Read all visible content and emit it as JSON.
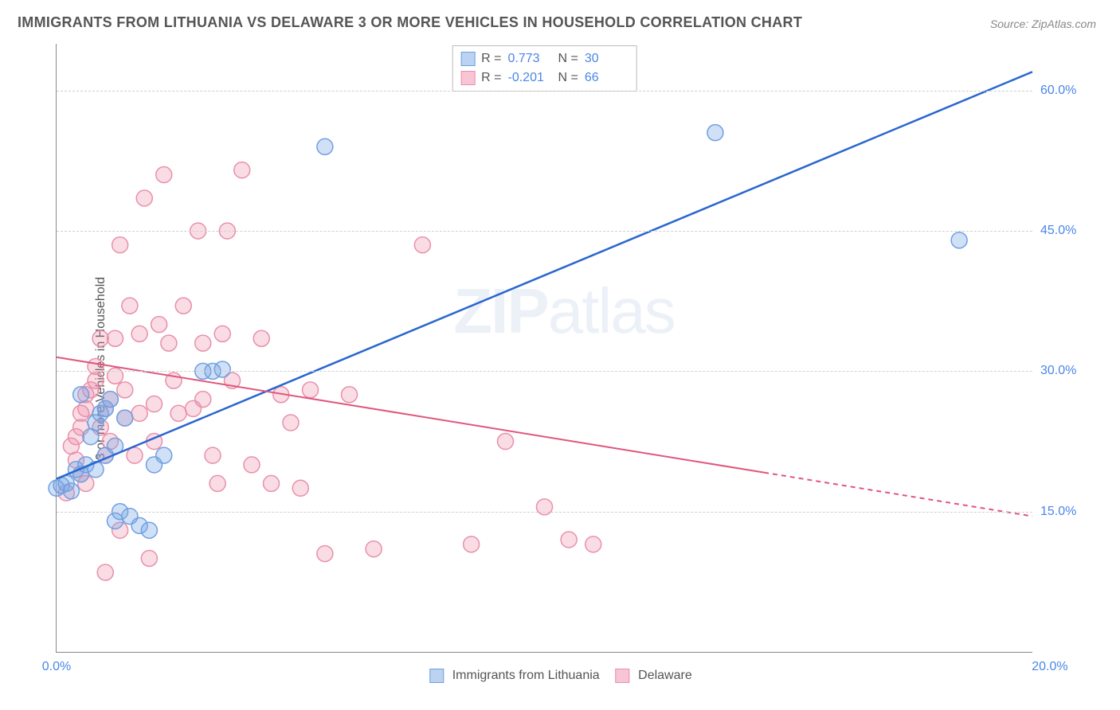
{
  "title": "IMMIGRANTS FROM LITHUANIA VS DELAWARE 3 OR MORE VEHICLES IN HOUSEHOLD CORRELATION CHART",
  "source": "Source: ZipAtlas.com",
  "ylabel": "3 or more Vehicles in Household",
  "watermark_bold": "ZIP",
  "watermark_rest": "atlas",
  "chart": {
    "type": "scatter",
    "xlim": [
      0,
      20
    ],
    "ylim": [
      0,
      65
    ],
    "background_color": "#ffffff",
    "grid_color": "#d0d0d0",
    "yticks": [
      15.0,
      30.0,
      45.0,
      60.0
    ],
    "ytick_labels": [
      "15.0%",
      "30.0%",
      "45.0%",
      "60.0%"
    ],
    "xtick_labels": {
      "first": "0.0%",
      "last": "20.0%"
    },
    "tick_color": "#4a86e8",
    "tick_fontsize": 16,
    "label_fontsize": 16,
    "label_color": "#555555",
    "series": [
      {
        "name": "Immigrants from Lithuania",
        "color_fill": "rgba(120,165,230,0.35)",
        "color_stroke": "#6fa0e0",
        "line_color": "#2a66d0",
        "line_width": 2.5,
        "marker_radius": 10,
        "R": 0.773,
        "N": 30,
        "trend": {
          "x1": 0,
          "y1": 18.5,
          "x2": 20,
          "y2": 62.0
        },
        "trend_solid_to_x": 20,
        "points": [
          [
            0.0,
            17.5
          ],
          [
            0.1,
            17.8
          ],
          [
            0.2,
            18.0
          ],
          [
            0.3,
            17.2
          ],
          [
            0.5,
            19.0
          ],
          [
            0.4,
            19.5
          ],
          [
            0.6,
            20.0
          ],
          [
            0.7,
            23.0
          ],
          [
            0.8,
            24.5
          ],
          [
            0.9,
            25.5
          ],
          [
            1.0,
            26.0
          ],
          [
            1.1,
            27.0
          ],
          [
            1.2,
            14.0
          ],
          [
            1.3,
            15.0
          ],
          [
            1.5,
            14.5
          ],
          [
            1.7,
            13.5
          ],
          [
            1.9,
            13.0
          ],
          [
            0.8,
            19.5
          ],
          [
            1.0,
            21.0
          ],
          [
            1.2,
            22.0
          ],
          [
            1.4,
            25.0
          ],
          [
            2.0,
            20.0
          ],
          [
            2.2,
            21.0
          ],
          [
            3.0,
            30.0
          ],
          [
            3.2,
            30.0
          ],
          [
            3.4,
            30.2
          ],
          [
            5.5,
            54.0
          ],
          [
            13.5,
            55.5
          ],
          [
            18.5,
            44.0
          ],
          [
            0.5,
            27.5
          ]
        ]
      },
      {
        "name": "Delaware",
        "color_fill": "rgba(240,140,170,0.30)",
        "color_stroke": "#e890ac",
        "line_color": "#e0567d",
        "line_width": 2,
        "marker_radius": 10,
        "R": -0.201,
        "N": 66,
        "trend": {
          "x1": 0,
          "y1": 31.5,
          "x2": 20,
          "y2": 14.5
        },
        "trend_solid_to_x": 14.5,
        "points": [
          [
            0.2,
            17.0
          ],
          [
            0.3,
            22.0
          ],
          [
            0.4,
            23.0
          ],
          [
            0.5,
            24.0
          ],
          [
            0.5,
            25.5
          ],
          [
            0.6,
            26.0
          ],
          [
            0.6,
            27.5
          ],
          [
            0.7,
            28.0
          ],
          [
            0.8,
            29.0
          ],
          [
            0.8,
            30.5
          ],
          [
            0.9,
            33.5
          ],
          [
            0.9,
            24.0
          ],
          [
            1.0,
            21.0
          ],
          [
            1.0,
            26.0
          ],
          [
            1.1,
            22.5
          ],
          [
            1.1,
            27.0
          ],
          [
            1.2,
            29.5
          ],
          [
            1.2,
            33.5
          ],
          [
            1.3,
            43.5
          ],
          [
            1.4,
            28.0
          ],
          [
            1.4,
            25.0
          ],
          [
            1.5,
            37.0
          ],
          [
            1.6,
            21.0
          ],
          [
            1.7,
            25.5
          ],
          [
            1.7,
            34.0
          ],
          [
            1.8,
            48.5
          ],
          [
            1.9,
            10.0
          ],
          [
            2.0,
            22.5
          ],
          [
            2.0,
            26.5
          ],
          [
            2.1,
            35.0
          ],
          [
            2.2,
            51.0
          ],
          [
            2.3,
            33.0
          ],
          [
            2.4,
            29.0
          ],
          [
            2.5,
            25.5
          ],
          [
            2.6,
            37.0
          ],
          [
            2.8,
            26.0
          ],
          [
            2.9,
            45.0
          ],
          [
            3.0,
            27.0
          ],
          [
            3.0,
            33.0
          ],
          [
            3.2,
            21.0
          ],
          [
            3.3,
            18.0
          ],
          [
            3.4,
            34.0
          ],
          [
            3.5,
            45.0
          ],
          [
            3.6,
            29.0
          ],
          [
            3.8,
            51.5
          ],
          [
            4.0,
            20.0
          ],
          [
            4.2,
            33.5
          ],
          [
            4.4,
            18.0
          ],
          [
            4.6,
            27.5
          ],
          [
            4.8,
            24.5
          ],
          [
            5.0,
            17.5
          ],
          [
            5.2,
            28.0
          ],
          [
            5.5,
            10.5
          ],
          [
            6.0,
            27.5
          ],
          [
            6.5,
            11.0
          ],
          [
            7.5,
            43.5
          ],
          [
            8.5,
            11.5
          ],
          [
            9.2,
            22.5
          ],
          [
            10.0,
            15.5
          ],
          [
            10.5,
            12.0
          ],
          [
            11.0,
            11.5
          ],
          [
            0.5,
            19.0
          ],
          [
            0.6,
            18.0
          ],
          [
            0.4,
            20.5
          ],
          [
            1.0,
            8.5
          ],
          [
            1.3,
            13.0
          ]
        ]
      }
    ],
    "legend_items": [
      {
        "label": "Immigrants from Lithuania",
        "fill": "rgba(120,165,230,0.5)",
        "stroke": "#6fa0e0"
      },
      {
        "label": "Delaware",
        "fill": "rgba(240,140,170,0.5)",
        "stroke": "#e890ac"
      }
    ]
  },
  "stats_box": {
    "rows": [
      {
        "fill": "rgba(120,165,230,0.5)",
        "stroke": "#6fa0e0",
        "R_label": "R =",
        "R": "0.773",
        "N_label": "N =",
        "N": "30"
      },
      {
        "fill": "rgba(240,140,170,0.5)",
        "stroke": "#e890ac",
        "R_label": "R =",
        "R": "-0.201",
        "N_label": "N =",
        "N": "66"
      }
    ]
  }
}
